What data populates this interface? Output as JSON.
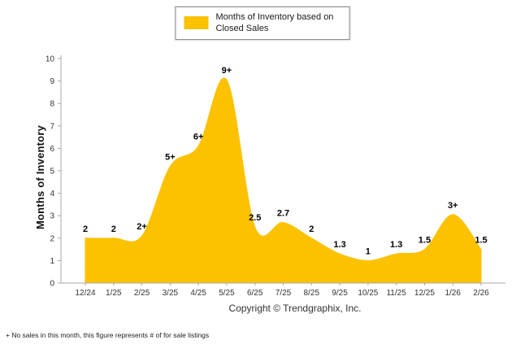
{
  "chart_data": {
    "type": "area",
    "title": "",
    "legend_label": "Months of Inventory based on Closed Sales",
    "legend_position": "top-center",
    "ylabel": "Months of Inventory",
    "xlabel": "",
    "ylim": [
      0,
      10
    ],
    "y_ticks": [
      0,
      1,
      2,
      3,
      4,
      5,
      6,
      7,
      8,
      9,
      10
    ],
    "grid": false,
    "fill_color": "#FCC200",
    "axis_color": "#a8a8a8",
    "categories": [
      "12/24",
      "1/25",
      "2/25",
      "3/25",
      "4/25",
      "5/25",
      "6/25",
      "7/25",
      "8/25",
      "9/25",
      "10/25",
      "11/25",
      "12/25",
      "1/26",
      "2/26"
    ],
    "values": [
      2,
      2,
      2.1,
      5.2,
      6.1,
      9.05,
      2.5,
      2.7,
      2,
      1.3,
      1,
      1.3,
      1.5,
      3.05,
      1.5
    ],
    "point_labels": [
      "2",
      "2",
      "2+",
      "5+",
      "6+",
      "9+",
      "2.5",
      "2.7",
      "2",
      "1.3",
      "1",
      "1.3",
      "1.5",
      "3+",
      "1.5"
    ]
  },
  "footer": {
    "copyright": "Copyright © Trendgraphix, Inc.",
    "footnote": "+ No sales in this month, this figure represents # of for sale listings"
  }
}
